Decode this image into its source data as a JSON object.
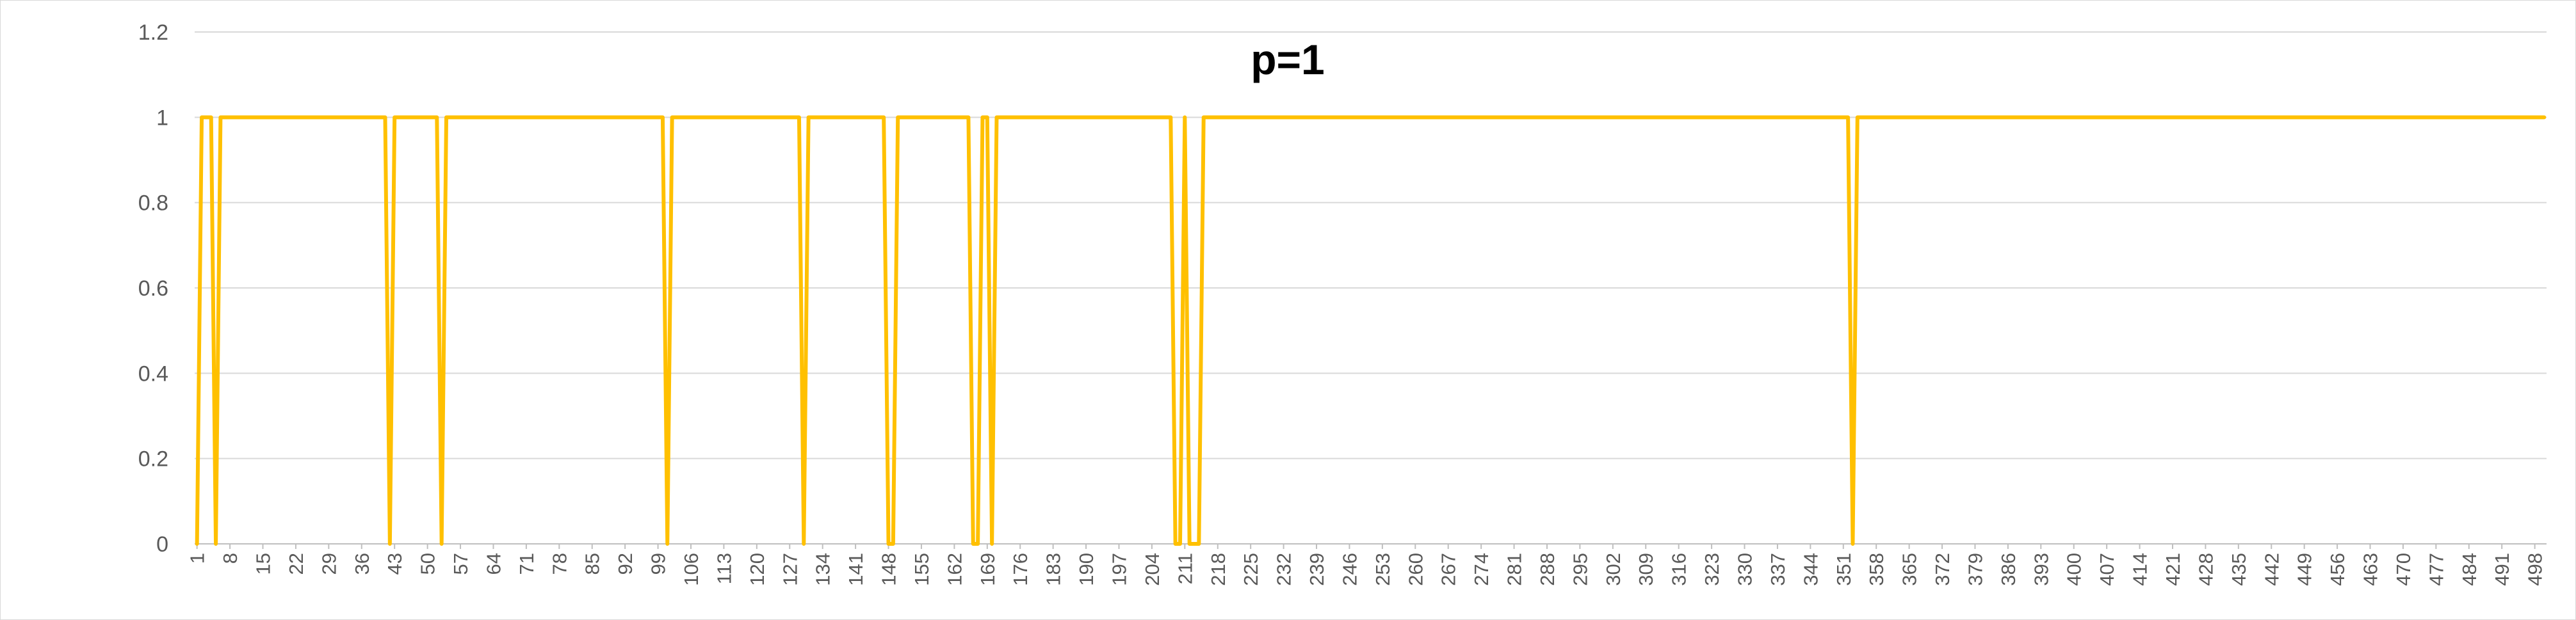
{
  "chart_data": {
    "type": "line",
    "title": "p=1",
    "xlabel": "",
    "ylabel": "",
    "ylim": [
      0,
      1.2
    ],
    "y_ticks": [
      "0",
      "0.2",
      "0.4",
      "0.6",
      "0.8",
      "1",
      "1.2"
    ],
    "grid": true,
    "legend": "none",
    "x_range": [
      1,
      500
    ],
    "x_ticks": [
      "1",
      "8",
      "15",
      "22",
      "29",
      "36",
      "43",
      "50",
      "57",
      "64",
      "71",
      "78",
      "85",
      "92",
      "99",
      "106",
      "113",
      "120",
      "127",
      "134",
      "141",
      "148",
      "155",
      "162",
      "169",
      "176",
      "183",
      "190",
      "197",
      "204",
      "211",
      "218",
      "225",
      "232",
      "239",
      "246",
      "253",
      "260",
      "267",
      "274",
      "281",
      "288",
      "295",
      "302",
      "309",
      "316",
      "323",
      "330",
      "337",
      "344",
      "351",
      "358",
      "365",
      "372",
      "379",
      "386",
      "393",
      "400",
      "407",
      "414",
      "421",
      "428",
      "435",
      "442",
      "449",
      "456",
      "463",
      "470",
      "477",
      "484",
      "491",
      "498"
    ],
    "series": [
      {
        "color": "#ffc000",
        "zero_indices": [
          1,
          5,
          42,
          53,
          101,
          130,
          148,
          149,
          166,
          167,
          170,
          209,
          210,
          212,
          213,
          214,
          353
        ]
      }
    ]
  }
}
